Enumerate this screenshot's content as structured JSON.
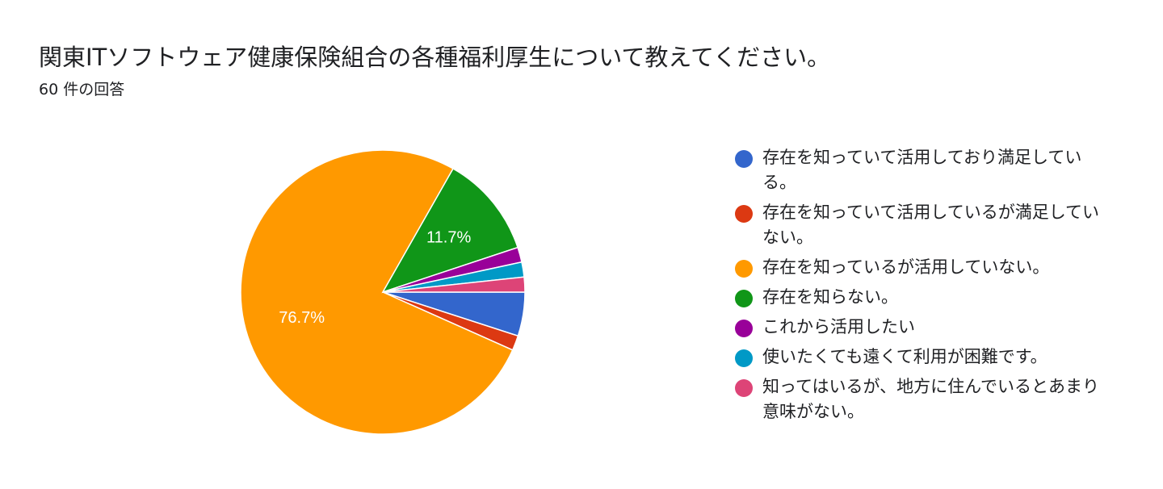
{
  "chart_data": {
    "type": "pie",
    "title": "関東ITソフトウェア健康保険組合の各種福利厚生について教えてください。",
    "subtitle": "60 件の回答",
    "categories": [
      "存在を知っていて活用しており満足している。",
      "存在を知っていて活用しているが満足していない。",
      "存在を知っているが活用していない。",
      "存在を知らない。",
      "これから活用したい",
      "使いたくても遠くて利用が困難です。",
      "知ってはいるが、地方に住んでいるとあまり意味がない。"
    ],
    "values": [
      5,
      1.7,
      76.7,
      11.7,
      1.7,
      1.7,
      1.7
    ],
    "value_labels": [
      null,
      null,
      "76.7%",
      "11.7%",
      null,
      null,
      null
    ],
    "colors": [
      "#3366cc",
      "#dc3912",
      "#ff9900",
      "#109618",
      "#990099",
      "#0099c6",
      "#dd4477"
    ],
    "legend": "right"
  }
}
